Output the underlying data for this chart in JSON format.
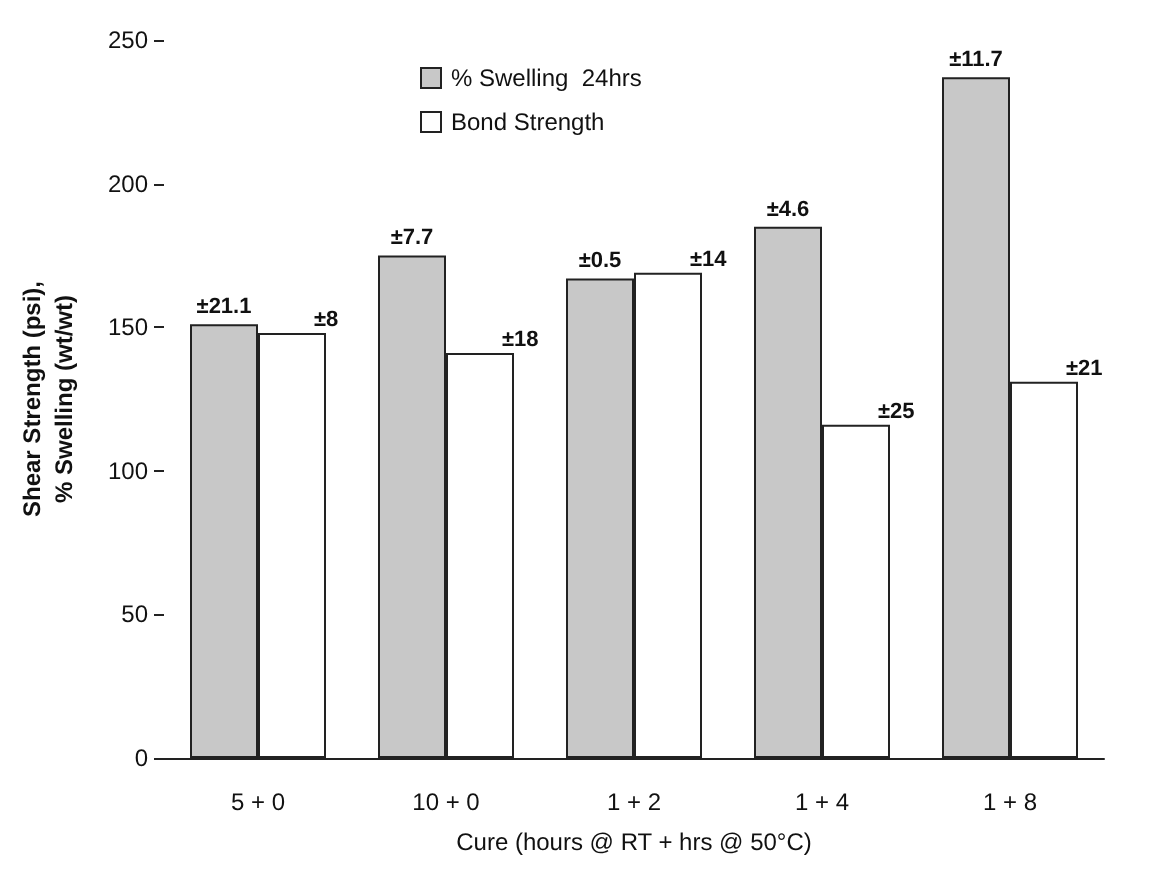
{
  "chart_data": {
    "type": "bar",
    "xlabel": "Cure (hours @ RT + hrs @ 50°C)",
    "ylabel": "Shear Strength (psi),\n% Swelling (wt/wt)",
    "categories": [
      "5 + 0",
      "10 + 0",
      "1 + 2",
      "1 + 4",
      "1 + 8"
    ],
    "series": [
      {
        "name": "% Swelling  24hrs",
        "color": "#c8c8c8",
        "values": [
          151,
          175,
          167,
          185,
          237
        ]
      },
      {
        "name": "Bond Strength",
        "color": "#ffffff",
        "values": [
          148,
          141,
          169,
          116,
          131
        ]
      }
    ],
    "annotations": [
      {
        "text": "±21.1",
        "x": "5 + 0",
        "y": 151
      },
      {
        "text": "±7.7",
        "x": "10 + 0",
        "y": 175
      },
      {
        "text": "±0.5",
        "x": "1 + 2",
        "y": 167
      },
      {
        "text": "±4.6",
        "x": "1 + 4",
        "y": 185
      },
      {
        "text": "±11.7",
        "x": "1 + 8",
        "y": 237
      },
      {
        "text": "±8",
        "x": "5 + 0",
        "y": 148
      },
      {
        "text": "±18",
        "x": "10 + 0",
        "y": 141
      },
      {
        "text": "±14",
        "x": "1 + 2",
        "y": 169
      },
      {
        "text": "±25",
        "x": "1 + 4",
        "y": 116
      },
      {
        "text": "±21",
        "x": "1 + 8",
        "y": 131
      }
    ],
    "ylim": [
      0,
      250
    ],
    "yticks": [
      0,
      50,
      100,
      150,
      200,
      250
    ],
    "grid": false,
    "legend": "top"
  }
}
